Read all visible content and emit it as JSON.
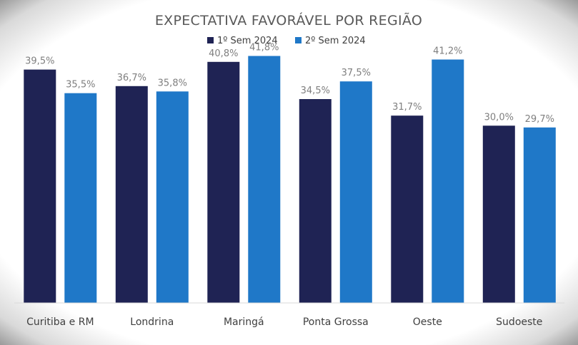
{
  "chart_data": {
    "type": "bar",
    "title": "EXPECTATIVA FAVORÁVEL POR REGIÃO",
    "categories": [
      "Curitiba e RM",
      "Londrina",
      "Maringá",
      "Ponta Grossa",
      "Oeste",
      "Sudoeste"
    ],
    "series": [
      {
        "name": "1º Sem 2024",
        "color": "#1f2354",
        "values": [
          39.5,
          36.7,
          40.8,
          34.5,
          31.7,
          30.0
        ],
        "labels": [
          "39,5%",
          "36,7%",
          "40,8%",
          "34,5%",
          "31,7%",
          "30,0%"
        ]
      },
      {
        "name": "2º Sem 2024",
        "color": "#1f78c8",
        "values": [
          35.5,
          35.8,
          41.8,
          37.5,
          41.2,
          29.7
        ],
        "labels": [
          "35,5%",
          "35,8%",
          "41,8%",
          "37,5%",
          "41,2%",
          "29,7%"
        ]
      }
    ],
    "ylim": [
      0,
      45
    ],
    "grid": false,
    "legend_position": "top-center"
  }
}
